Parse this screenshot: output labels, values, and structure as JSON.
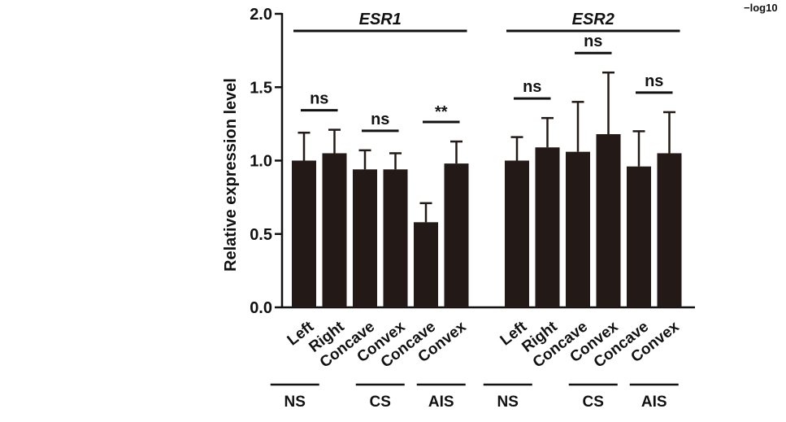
{
  "corner_text": "−log10",
  "chart_data": {
    "type": "bar",
    "title": "",
    "xlabel": "",
    "ylabel": "Relative expression level",
    "ylim": [
      0,
      2.0
    ],
    "yticks": [
      "0.0",
      "0.5",
      "1.0",
      "1.5",
      "2.0"
    ],
    "colors": {
      "bar": "#231a17",
      "axis": "#111111"
    },
    "genes": [
      {
        "name": "ESR1",
        "categories": [
          "Left",
          "Right",
          "Concave",
          "Convex",
          "Concave",
          "Convex"
        ],
        "values": [
          1.0,
          1.05,
          0.94,
          0.94,
          0.58,
          0.98
        ],
        "errors": [
          0.19,
          0.16,
          0.13,
          0.11,
          0.13,
          0.15
        ],
        "groups": [
          "NS",
          "CS",
          "AIS"
        ],
        "comparisons": [
          {
            "pair": [
              0,
              1
            ],
            "label": "ns"
          },
          {
            "pair": [
              2,
              3
            ],
            "label": "ns"
          },
          {
            "pair": [
              4,
              5
            ],
            "label": "**"
          }
        ]
      },
      {
        "name": "ESR2",
        "categories": [
          "Left",
          "Right",
          "Concave",
          "Convex",
          "Concave",
          "Convex"
        ],
        "values": [
          1.0,
          1.09,
          1.06,
          1.18,
          0.96,
          1.05
        ],
        "errors": [
          0.16,
          0.2,
          0.34,
          0.42,
          0.24,
          0.28
        ],
        "groups": [
          "NS",
          "CS",
          "AIS"
        ],
        "comparisons": [
          {
            "pair": [
              0,
              1
            ],
            "label": "ns"
          },
          {
            "pair": [
              2,
              3
            ],
            "label": "ns"
          },
          {
            "pair": [
              4,
              5
            ],
            "label": "ns"
          }
        ]
      }
    ]
  }
}
